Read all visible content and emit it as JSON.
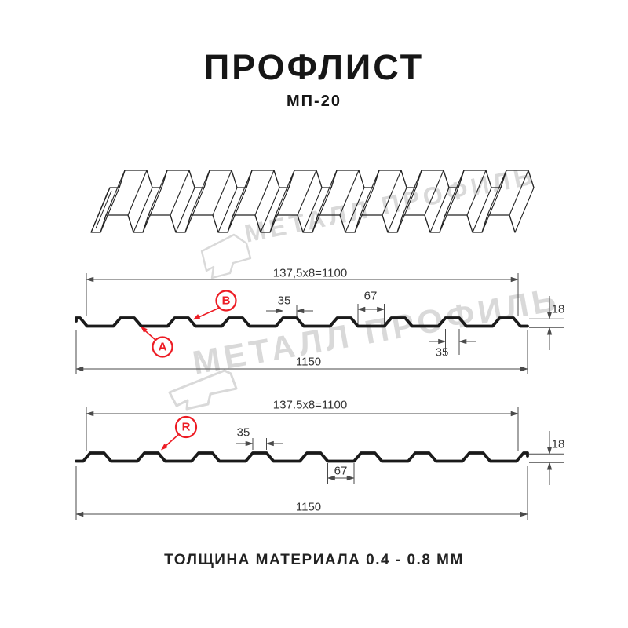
{
  "header": {
    "title": "ПРОФЛИСТ",
    "subtitle": "МП-20"
  },
  "watermark": {
    "brand": "МЕТАЛЛ ПРОФИЛЬ",
    "logo_icon": "metal-profil-logo"
  },
  "footer": {
    "caption": "ТОЛЩИНА МАТЕРИАЛА 0.4 - 0.8 ММ"
  },
  "colors": {
    "accent_red": "#ed1c24",
    "profile_line": "#1a1a1a",
    "dimension_line": "#4a4a4a",
    "sheet_line": "#222222",
    "watermark": "#d9d9d9"
  },
  "diagram1": {
    "working_width": "137,5x8=1100",
    "total_width": "1150",
    "crest_width_top": "35",
    "valley_width": "67",
    "height": "18",
    "crest_width_bottom": "35",
    "label_a": "A",
    "label_b": "B"
  },
  "diagram2": {
    "working_width": "137.5x8=1100",
    "total_width": "1150",
    "crest_width_top": "35",
    "valley_width": "67",
    "height": "18",
    "label_r": "R"
  }
}
